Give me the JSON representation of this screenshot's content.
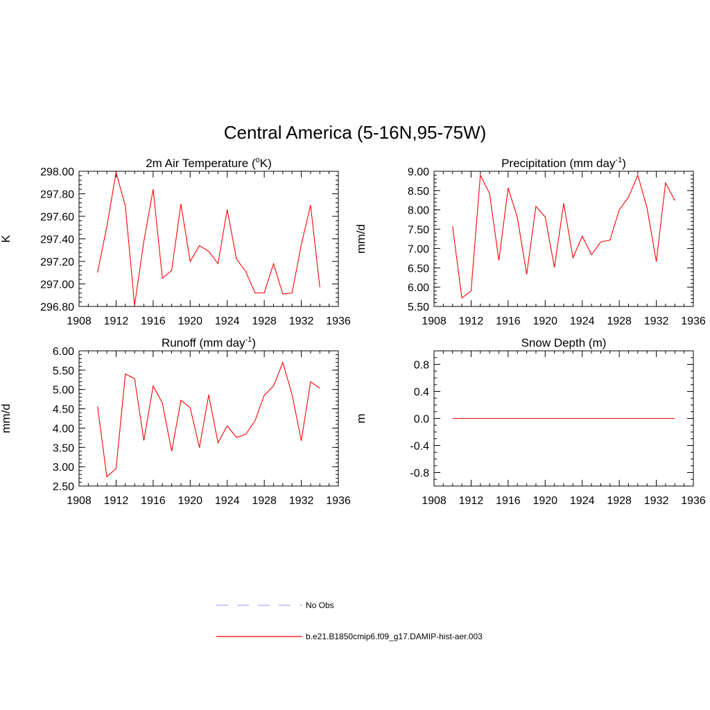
{
  "figure_title": "Central America (5-16N,95-75W)",
  "legend": {
    "entries": [
      {
        "label": "No Obs",
        "color": "#aaaaee",
        "style": "dashed"
      },
      {
        "label": "b.e21.B1850cmip6.f09_g17.DAMIP-hist-aer.003",
        "color": "#ff0000",
        "style": "solid"
      }
    ]
  },
  "chart_data": [
    {
      "type": "line",
      "title_main": "2m Air Temperature (",
      "title_sup": "o",
      "title_tail": "K)",
      "ylabel": "K",
      "xlim": [
        1908,
        1936
      ],
      "xticks": [
        1908,
        1912,
        1916,
        1920,
        1924,
        1928,
        1932,
        1936
      ],
      "ylim": [
        296.8,
        298.0
      ],
      "yticks": [
        "296.80",
        "297.00",
        "297.20",
        "297.40",
        "297.60",
        "297.80",
        "298.00"
      ],
      "y_minor_step": 0.04,
      "series": [
        {
          "color": "#ff0000",
          "x": [
            1910,
            1911,
            1912,
            1913,
            1914,
            1915,
            1916,
            1917,
            1918,
            1919,
            1920,
            1921,
            1922,
            1923,
            1924,
            1925,
            1926,
            1927,
            1928,
            1929,
            1930,
            1931,
            1932,
            1933,
            1934
          ],
          "y": [
            297.1,
            297.51,
            297.99,
            297.69,
            296.81,
            297.38,
            297.84,
            297.05,
            297.12,
            297.71,
            297.2,
            297.34,
            297.29,
            297.18,
            297.66,
            297.22,
            297.11,
            296.92,
            296.92,
            297.18,
            296.91,
            296.92,
            297.35,
            297.7,
            296.97
          ]
        }
      ]
    },
    {
      "type": "line",
      "title_main": "Precipitation (mm day",
      "title_sup": "-1",
      "title_tail": ")",
      "ylabel": "mm/d",
      "xlim": [
        1908,
        1936
      ],
      "xticks": [
        1908,
        1912,
        1916,
        1920,
        1924,
        1928,
        1932,
        1936
      ],
      "ylim": [
        5.5,
        9.0
      ],
      "yticks": [
        "5.50",
        "6.00",
        "6.50",
        "7.00",
        "7.50",
        "8.00",
        "8.50",
        "9.00"
      ],
      "y_minor_step": 0.1,
      "series": [
        {
          "color": "#ff0000",
          "x": [
            1910,
            1911,
            1912,
            1913,
            1914,
            1915,
            1916,
            1917,
            1918,
            1919,
            1920,
            1921,
            1922,
            1923,
            1924,
            1925,
            1926,
            1927,
            1928,
            1929,
            1930,
            1931,
            1932,
            1933,
            1934
          ],
          "y": [
            7.58,
            5.72,
            5.9,
            8.9,
            8.42,
            6.69,
            8.57,
            7.8,
            6.33,
            8.09,
            7.82,
            6.51,
            8.17,
            6.76,
            7.32,
            6.84,
            7.17,
            7.22,
            8.0,
            8.33,
            8.9,
            8.05,
            6.66,
            8.7,
            8.24
          ]
        }
      ]
    },
    {
      "type": "line",
      "title_main": "Runoff (mm day",
      "title_sup": "-1",
      "title_tail": ")",
      "ylabel": "mm/d",
      "xlim": [
        1908,
        1936
      ],
      "xticks": [
        1908,
        1912,
        1916,
        1920,
        1924,
        1928,
        1932,
        1936
      ],
      "ylim": [
        2.5,
        6.0
      ],
      "yticks": [
        "2.50",
        "3.00",
        "3.50",
        "4.00",
        "4.50",
        "5.00",
        "5.50",
        "6.00"
      ],
      "y_minor_step": 0.1,
      "series": [
        {
          "color": "#ff0000",
          "x": [
            1910,
            1911,
            1912,
            1913,
            1914,
            1915,
            1916,
            1917,
            1918,
            1919,
            1920,
            1921,
            1922,
            1923,
            1924,
            1925,
            1926,
            1927,
            1928,
            1929,
            1930,
            1931,
            1932,
            1933,
            1934
          ],
          "y": [
            4.56,
            2.74,
            2.95,
            5.4,
            5.28,
            3.68,
            5.09,
            4.65,
            3.4,
            4.72,
            4.53,
            3.49,
            4.86,
            3.62,
            4.06,
            3.76,
            3.84,
            4.19,
            4.85,
            5.09,
            5.7,
            4.87,
            3.67,
            5.2,
            5.03
          ]
        }
      ]
    },
    {
      "type": "line",
      "title_main": "Snow Depth (m)",
      "title_sup": "",
      "title_tail": "",
      "ylabel": "m",
      "xlim": [
        1908,
        1936
      ],
      "xticks": [
        1908,
        1912,
        1916,
        1920,
        1924,
        1928,
        1932,
        1936
      ],
      "ylim": [
        -1.0,
        1.0
      ],
      "yticks": [
        "-0.8",
        "-0.4",
        "0.0",
        "0.4",
        "0.8"
      ],
      "y_minor_step": 0.1,
      "series": [
        {
          "color": "#ff0000",
          "x": [
            1910,
            1911,
            1912,
            1913,
            1914,
            1915,
            1916,
            1917,
            1918,
            1919,
            1920,
            1921,
            1922,
            1923,
            1924,
            1925,
            1926,
            1927,
            1928,
            1929,
            1930,
            1931,
            1932,
            1933,
            1934
          ],
          "y": [
            0,
            0,
            0,
            0,
            0,
            0,
            0,
            0,
            0,
            0,
            0,
            0,
            0,
            0,
            0,
            0,
            0,
            0,
            0,
            0,
            0,
            0,
            0,
            0,
            0
          ]
        }
      ]
    }
  ]
}
